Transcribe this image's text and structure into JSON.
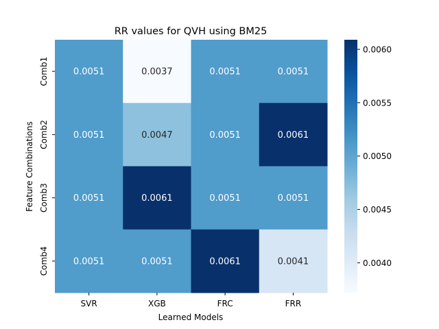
{
  "chart_data": {
    "type": "heatmap",
    "title": "RR values for QVH using BM25",
    "xlabel": "Learned Models",
    "ylabel": "Feature Combinations",
    "x_categories": [
      "SVR",
      "XGB",
      "FRC",
      "FRR"
    ],
    "y_categories": [
      "Comb1",
      "Comb2",
      "Comb3",
      "Comb4"
    ],
    "values": [
      [
        0.0051,
        0.0037,
        0.0051,
        0.0051
      ],
      [
        0.0051,
        0.0047,
        0.0051,
        0.0061
      ],
      [
        0.0051,
        0.0061,
        0.0051,
        0.0051
      ],
      [
        0.0051,
        0.0051,
        0.0061,
        0.0041
      ]
    ],
    "labels": [
      [
        "0.0051",
        "0.0037",
        "0.0051",
        "0.0051"
      ],
      [
        "0.0051",
        "0.0047",
        "0.0051",
        "0.0061"
      ],
      [
        "0.0051",
        "0.0061",
        "0.0051",
        "0.0051"
      ],
      [
        "0.0051",
        "0.0051",
        "0.0061",
        "0.0041"
      ]
    ],
    "colormap": "Blues",
    "vmin": 0.00372,
    "vmax": 0.00609,
    "colorbar_ticks": [
      0.004,
      0.0045,
      0.005,
      0.0055,
      0.006
    ],
    "colorbar_tick_labels": [
      "0.0040",
      "0.0045",
      "0.0050",
      "0.0055",
      "0.0060"
    ],
    "grid": false,
    "legend": "colorbar-right"
  }
}
